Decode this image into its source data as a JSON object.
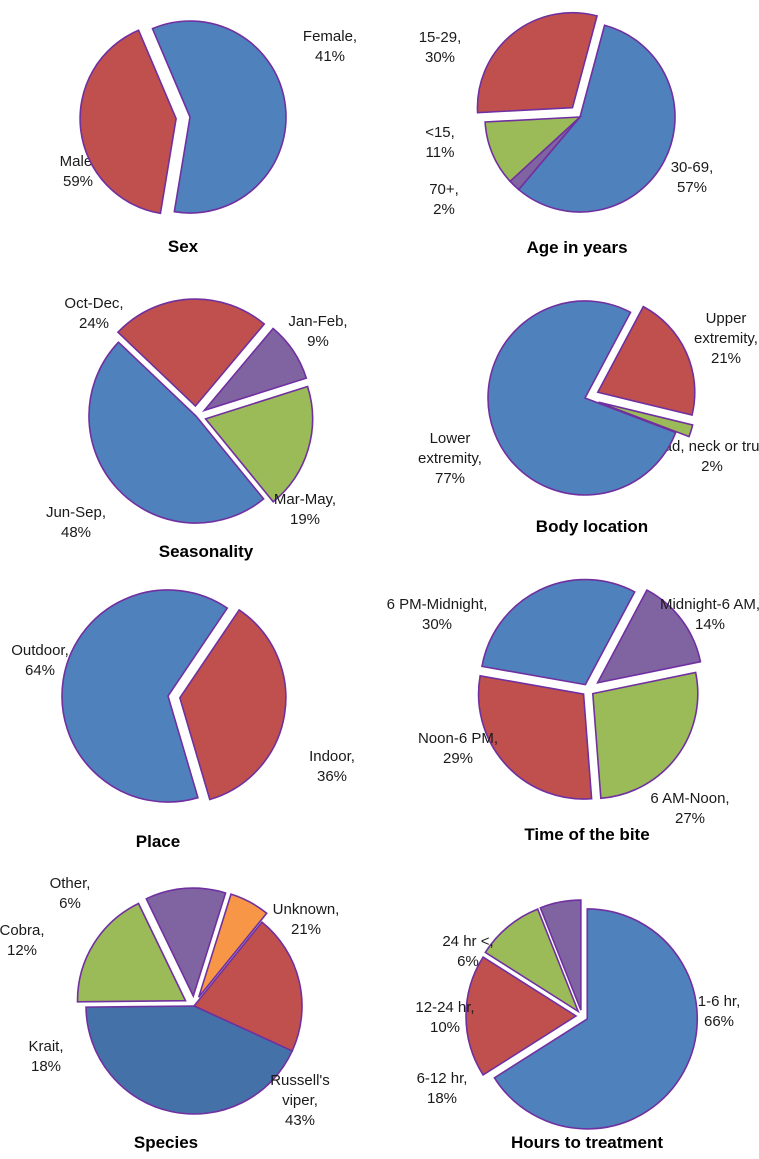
{
  "colors": {
    "blue": "#4f81bd",
    "red": "#c0504d",
    "green": "#9bbb59",
    "purple": "#8064a2",
    "orange": "#f79646",
    "dark_blue": "#4472a8",
    "outline": "#7030a0"
  },
  "chart_data": [
    {
      "type": "pie",
      "title": "Sex",
      "slices": [
        {
          "label": "Male,",
          "pct_text": "59%",
          "value": 59,
          "color": "#4f81bd"
        },
        {
          "label": "Female,",
          "pct_text": "41%",
          "value": 41,
          "color": "#c0504d"
        }
      ]
    },
    {
      "type": "pie",
      "title": "Age in years",
      "slices": [
        {
          "label": "30-69,",
          "pct_text": "57%",
          "value": 57,
          "color": "#4f81bd"
        },
        {
          "label": "70+,",
          "pct_text": "2%",
          "value": 2,
          "color": "#8064a2"
        },
        {
          "label": "<15,",
          "pct_text": "11%",
          "value": 11,
          "color": "#9bbb59"
        },
        {
          "label": "15-29,",
          "pct_text": "30%",
          "value": 30,
          "color": "#c0504d"
        }
      ]
    },
    {
      "type": "pie",
      "title": "Seasonality",
      "slices": [
        {
          "label": "Jan-Feb,",
          "pct_text": "9%",
          "value": 9,
          "color": "#8064a2"
        },
        {
          "label": "Mar-May,",
          "pct_text": "19%",
          "value": 19,
          "color": "#9bbb59"
        },
        {
          "label": "Jun-Sep,",
          "pct_text": "48%",
          "value": 48,
          "color": "#4f81bd"
        },
        {
          "label": "Oct-Dec,",
          "pct_text": "24%",
          "value": 24,
          "color": "#c0504d"
        }
      ]
    },
    {
      "type": "pie",
      "title": "Body location",
      "slices": [
        {
          "label": "Upper extremity,",
          "pct_text": "21%",
          "value": 21,
          "color": "#c0504d"
        },
        {
          "label": "Head, neck or trunk,",
          "pct_text": "2%",
          "value": 2,
          "color": "#9bbb59"
        },
        {
          "label": "Lower extremity,",
          "pct_text": "77%",
          "value": 77,
          "color": "#4f81bd"
        }
      ]
    },
    {
      "type": "pie",
      "title": "Place",
      "slices": [
        {
          "label": "Indoor,",
          "pct_text": "36%",
          "value": 36,
          "color": "#c0504d"
        },
        {
          "label": "Outdoor,",
          "pct_text": "64%",
          "value": 64,
          "color": "#4f81bd"
        }
      ]
    },
    {
      "type": "pie",
      "title": "Time of the bite",
      "slices": [
        {
          "label": "Midnight-6 AM,",
          "pct_text": "14%",
          "value": 14,
          "color": "#8064a2"
        },
        {
          "label": "6 AM-Noon,",
          "pct_text": "27%",
          "value": 27,
          "color": "#9bbb59"
        },
        {
          "label": "Noon-6 PM,",
          "pct_text": "29%",
          "value": 29,
          "color": "#c0504d"
        },
        {
          "label": "6 PM-Midnight,",
          "pct_text": "30%",
          "value": 30,
          "color": "#4f81bd"
        }
      ]
    },
    {
      "type": "pie",
      "title": "Species",
      "slices": [
        {
          "label": "Unknown,",
          "pct_text": "21%",
          "value": 21,
          "color": "#c0504d"
        },
        {
          "label": "Russell's viper,",
          "pct_text": "43%",
          "value": 43,
          "color": "#4472a8"
        },
        {
          "label": "Krait,",
          "pct_text": "18%",
          "value": 18,
          "color": "#9bbb59"
        },
        {
          "label": "Cobra,",
          "pct_text": "12%",
          "value": 12,
          "color": "#8064a2"
        },
        {
          "label": "Other,",
          "pct_text": "6%",
          "value": 6,
          "color": "#f79646"
        }
      ]
    },
    {
      "type": "pie",
      "title": "Hours to treatment",
      "slices": [
        {
          "label": "1-6 hr,",
          "pct_text": "66%",
          "value": 66,
          "color": "#4f81bd"
        },
        {
          "label": "6-12 hr,",
          "pct_text": "18%",
          "value": 18,
          "color": "#c0504d"
        },
        {
          "label": "12-24 hr,",
          "pct_text": "10%",
          "value": 10,
          "color": "#9bbb59"
        },
        {
          "label": "24 hr <,",
          "pct_text": "6%",
          "value": 6,
          "color": "#8064a2"
        }
      ]
    }
  ]
}
